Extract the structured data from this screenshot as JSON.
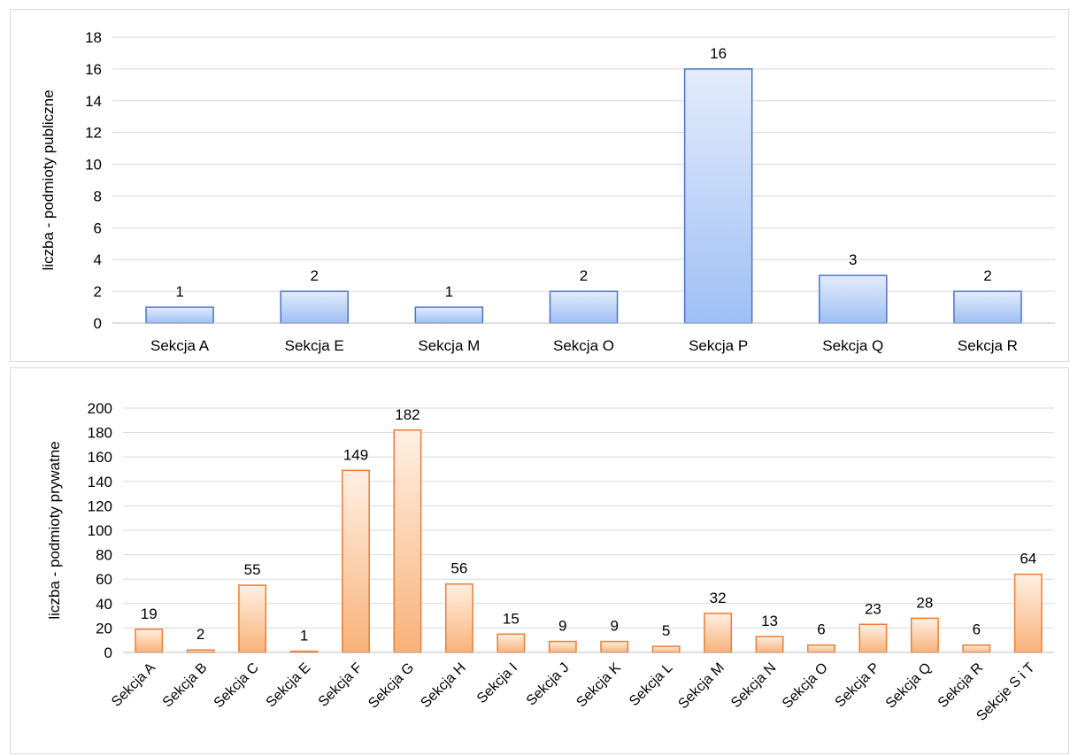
{
  "header": {
    "title": ""
  },
  "chart_data": [
    {
      "type": "bar",
      "title": "",
      "xlabel": "",
      "ylabel": "liczba - podmioty publiczne",
      "ylim": [
        0,
        18
      ],
      "yticks": [
        0,
        2,
        4,
        6,
        8,
        10,
        12,
        14,
        16,
        18
      ],
      "categories": [
        "Sekcja A",
        "Sekcja E",
        "Sekcja M",
        "Sekcja O",
        "Sekcja P",
        "Sekcja Q",
        "Sekcja R"
      ],
      "values": [
        1,
        2,
        1,
        2,
        16,
        3,
        2
      ],
      "data_labels": true,
      "grid": true,
      "colors": {
        "fill_top": "#e3ecfb",
        "fill_bottom": "#9fbff5",
        "stroke": "#4a74c4"
      }
    },
    {
      "type": "bar",
      "title": "",
      "xlabel": "",
      "ylabel": "liczba - podmioty prywatne",
      "ylim": [
        0,
        200
      ],
      "yticks": [
        0,
        20,
        40,
        60,
        80,
        100,
        120,
        140,
        160,
        180,
        200
      ],
      "categories": [
        "Sekcja A",
        "Sekcja B",
        "Sekcja C",
        "Sekcja E",
        "Sekcja F",
        "Sekcja G",
        "Sekcja H",
        "Sekcja I",
        "Sekcja J",
        "Sekcja K",
        "Sekcja L",
        "Sekcja M",
        "Sekcja N",
        "Sekcja O",
        "Sekcja P",
        "Sekcja Q",
        "Sekcja R",
        "Sekcje S i T"
      ],
      "values": [
        19,
        2,
        55,
        1,
        149,
        182,
        56,
        15,
        9,
        9,
        5,
        32,
        13,
        6,
        23,
        28,
        6,
        64
      ],
      "data_labels": true,
      "grid": true,
      "tick_label_rotation": "diagonal",
      "colors": {
        "fill_top": "#fff0e3",
        "fill_bottom": "#f8b27a",
        "stroke": "#ed7d31"
      }
    }
  ]
}
